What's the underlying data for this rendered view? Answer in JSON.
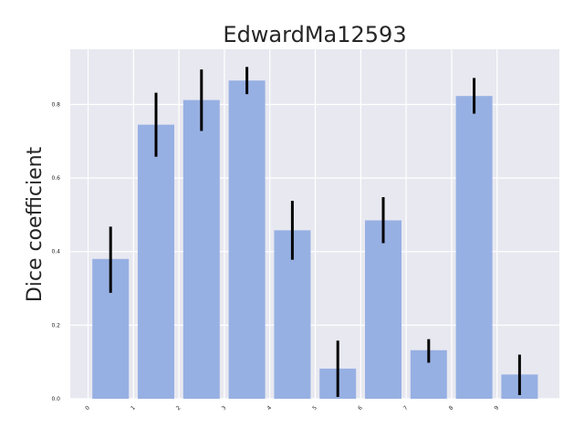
{
  "chart_data": {
    "type": "bar",
    "title": "EdwardMa12593",
    "xlabel": "",
    "ylabel": "Dice coefficient",
    "categories": [
      "0",
      "1",
      "2",
      "3",
      "4",
      "5",
      "6",
      "7",
      "8",
      "9"
    ],
    "values": [
      0.38,
      0.745,
      0.812,
      0.865,
      0.458,
      0.082,
      0.485,
      0.132,
      0.823,
      0.066
    ],
    "error_low": [
      0.288,
      0.658,
      0.728,
      0.828,
      0.378,
      0.005,
      0.423,
      0.098,
      0.775,
      0.01
    ],
    "error_high": [
      0.468,
      0.832,
      0.895,
      0.902,
      0.538,
      0.158,
      0.548,
      0.162,
      0.872,
      0.12
    ],
    "y_ticks": [
      "0.0",
      "0.2",
      "0.4",
      "0.6",
      "0.8"
    ],
    "ylim": [
      0,
      0.95
    ],
    "grid": true,
    "colors": {
      "bar": "#97b0e3",
      "error": "#000000",
      "plot_background": "#e8e8f0",
      "grid": "#ffffff",
      "text": "#262626"
    }
  }
}
